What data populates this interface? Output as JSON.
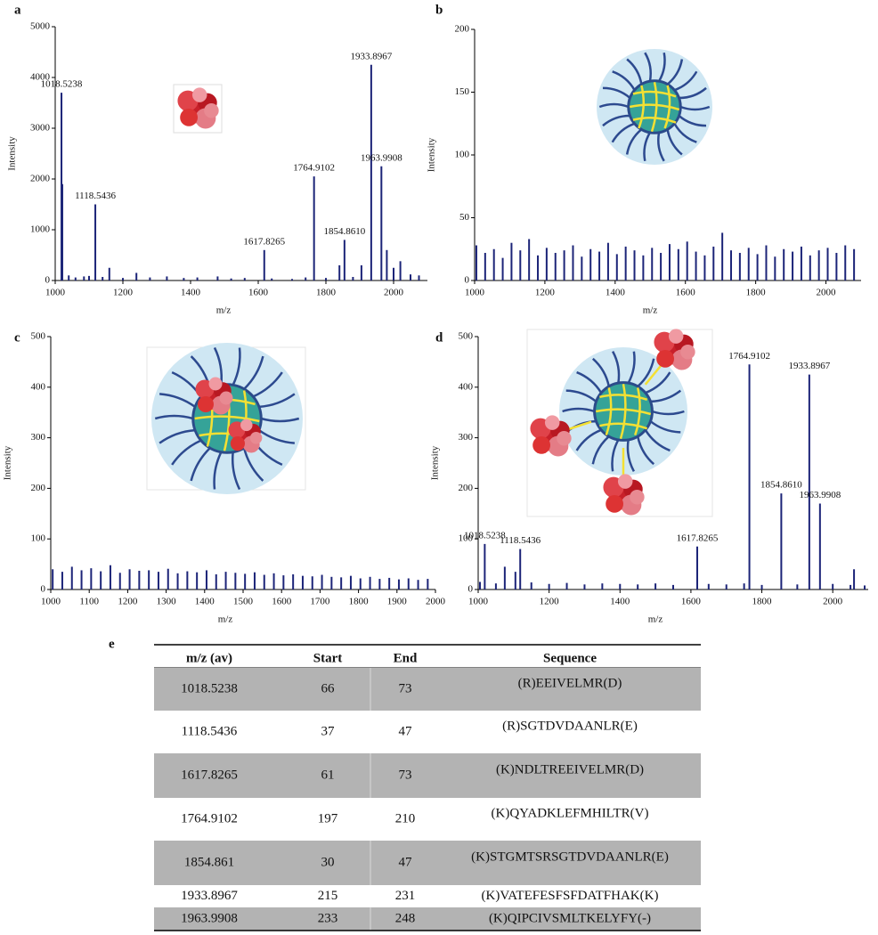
{
  "chart_data": [
    {
      "type": "stem",
      "label": "a",
      "xlabel": "m/z",
      "ylabel": "Intensity",
      "x": [
        1018.5238,
        1118.5436,
        1617.8265,
        1764.9102,
        1854.861,
        1933.8967,
        1963.9908,
        1021,
        1040,
        1060,
        1085,
        1100,
        1140,
        1160,
        1200,
        1240,
        1280,
        1330,
        1380,
        1420,
        1480,
        1520,
        1560,
        1640,
        1700,
        1740,
        1800,
        1840,
        1880,
        1905,
        1980,
        2000,
        2020,
        2050,
        2075
      ],
      "values": [
        3700,
        1500,
        600,
        2050,
        800,
        4250,
        2250,
        1900,
        100,
        60,
        80,
        90,
        70,
        250,
        50,
        150,
        60,
        80,
        50,
        60,
        80,
        40,
        50,
        40,
        30,
        60,
        50,
        300,
        70,
        300,
        600,
        250,
        380,
        120,
        100
      ],
      "labels": [
        "1018.5238",
        "1118.5436",
        "1617.8265",
        "1764.9102",
        "1854.8610",
        "1933.8967",
        "1963.9908",
        null,
        null,
        null,
        null,
        null,
        null,
        null,
        null,
        null,
        null,
        null,
        null,
        null,
        null,
        null,
        null,
        null,
        null,
        null,
        null,
        null,
        null,
        null,
        null,
        null,
        null,
        null,
        null
      ],
      "color": "#1c2478",
      "xlim": [
        1000,
        2100
      ],
      "xticks": [
        1000,
        1200,
        1400,
        1600,
        1800,
        2000
      ],
      "ylim": [
        0,
        5000
      ],
      "yticks": [
        0,
        1000,
        2000,
        3000,
        4000,
        5000
      ]
    },
    {
      "type": "stem",
      "label": "b",
      "xlabel": "m/z",
      "ylabel": "Intensity",
      "x": [
        1005,
        1030,
        1055,
        1080,
        1105,
        1130,
        1155,
        1180,
        1205,
        1230,
        1255,
        1280,
        1305,
        1330,
        1355,
        1380,
        1405,
        1430,
        1455,
        1480,
        1505,
        1530,
        1555,
        1580,
        1605,
        1630,
        1655,
        1680,
        1705,
        1730,
        1755,
        1780,
        1805,
        1830,
        1855,
        1880,
        1905,
        1930,
        1955,
        1980,
        2005,
        2030,
        2055,
        2080
      ],
      "values": [
        28,
        22,
        25,
        18,
        30,
        24,
        33,
        20,
        26,
        22,
        24,
        28,
        19,
        25,
        23,
        30,
        21,
        27,
        24,
        20,
        26,
        22,
        29,
        25,
        31,
        23,
        20,
        27,
        38,
        24,
        22,
        26,
        21,
        28,
        19,
        25,
        23,
        27,
        20,
        24,
        26,
        22,
        28,
        25
      ],
      "color": "#1c2478",
      "xlim": [
        1000,
        2100
      ],
      "xticks": [
        1000,
        1200,
        1400,
        1600,
        1800,
        2000
      ],
      "ylim": [
        0,
        200
      ],
      "yticks": [
        0,
        50,
        100,
        150,
        200
      ]
    },
    {
      "type": "stem",
      "label": "c",
      "xlabel": "m/z",
      "ylabel": "Intensity",
      "x": [
        1005,
        1030,
        1055,
        1080,
        1105,
        1130,
        1155,
        1180,
        1205,
        1230,
        1255,
        1280,
        1305,
        1330,
        1355,
        1380,
        1405,
        1430,
        1455,
        1480,
        1505,
        1530,
        1555,
        1580,
        1605,
        1630,
        1655,
        1680,
        1705,
        1730,
        1755,
        1780,
        1805,
        1830,
        1855,
        1880,
        1905,
        1930,
        1955,
        1980
      ],
      "values": [
        40,
        35,
        45,
        38,
        42,
        36,
        48,
        33,
        40,
        37,
        38,
        35,
        41,
        32,
        36,
        34,
        38,
        30,
        35,
        33,
        31,
        34,
        29,
        32,
        28,
        30,
        27,
        26,
        29,
        25,
        24,
        27,
        22,
        25,
        21,
        23,
        20,
        22,
        19,
        21
      ],
      "color": "#1c2478",
      "xlim": [
        1000,
        2000
      ],
      "xticks": [
        1000,
        1100,
        1200,
        1300,
        1400,
        1500,
        1600,
        1700,
        1800,
        1900,
        2000
      ],
      "ylim": [
        0,
        500
      ],
      "yticks": [
        0,
        100,
        200,
        300,
        400,
        500
      ]
    },
    {
      "type": "stem",
      "label": "d",
      "xlabel": "m/z",
      "ylabel": "Intensity",
      "x": [
        1018.5238,
        1118.5436,
        1617.8265,
        1764.9102,
        1854.861,
        1933.8967,
        1963.9908,
        1075,
        1105,
        2060,
        1005,
        1050,
        1150,
        1200,
        1250,
        1300,
        1350,
        1400,
        1450,
        1500,
        1550,
        1650,
        1700,
        1750,
        1800,
        1900,
        2000,
        2050,
        2090
      ],
      "values": [
        90,
        80,
        85,
        445,
        190,
        425,
        170,
        45,
        35,
        40,
        15,
        12,
        14,
        11,
        13,
        10,
        12,
        11,
        10,
        12,
        9,
        11,
        10,
        12,
        9,
        10,
        11,
        9,
        8
      ],
      "labels": [
        "1018.5238",
        "1118.5436",
        "1617.8265",
        "1764.9102",
        "1854.8610",
        "1933.8967",
        "1963.9908",
        null,
        null,
        null,
        null,
        null,
        null,
        null,
        null,
        null,
        null,
        null,
        null,
        null,
        null,
        null,
        null,
        null,
        null,
        null,
        null,
        null,
        null
      ],
      "color": "#1c2478",
      "xlim": [
        1000,
        2100
      ],
      "xticks": [
        1000,
        1200,
        1400,
        1600,
        1800,
        2000
      ],
      "ylim": [
        0,
        500
      ],
      "yticks": [
        0,
        100,
        200,
        300,
        400,
        500
      ]
    }
  ],
  "table": {
    "label": "e",
    "header": [
      "m/z (av)",
      "Start",
      "End",
      "Sequence"
    ],
    "rows": [
      [
        "1018.5238",
        "66",
        "73",
        "(R)EEIVELMR(D)"
      ],
      [
        "1118.5436",
        "37",
        "47",
        "(R)SGTDVDAANLR(E)"
      ],
      [
        "1617.8265",
        "61",
        "73",
        "(K)NDLTREEIVELMR(D)"
      ],
      [
        "1764.9102",
        "197",
        "210",
        "(K)QYADKLEFMHILTR(V)"
      ],
      [
        "1854.861",
        "30",
        "47",
        "(K)STGMTSRSGTDVDAANLR(E)"
      ],
      [
        "1933.8967",
        "215",
        "231",
        "(K)VATEFESFSFDATFHAK(K)"
      ],
      [
        "1963.9908",
        "233",
        "248",
        "(K)QIPCIVSMLTKELYFY(-)"
      ]
    ]
  }
}
